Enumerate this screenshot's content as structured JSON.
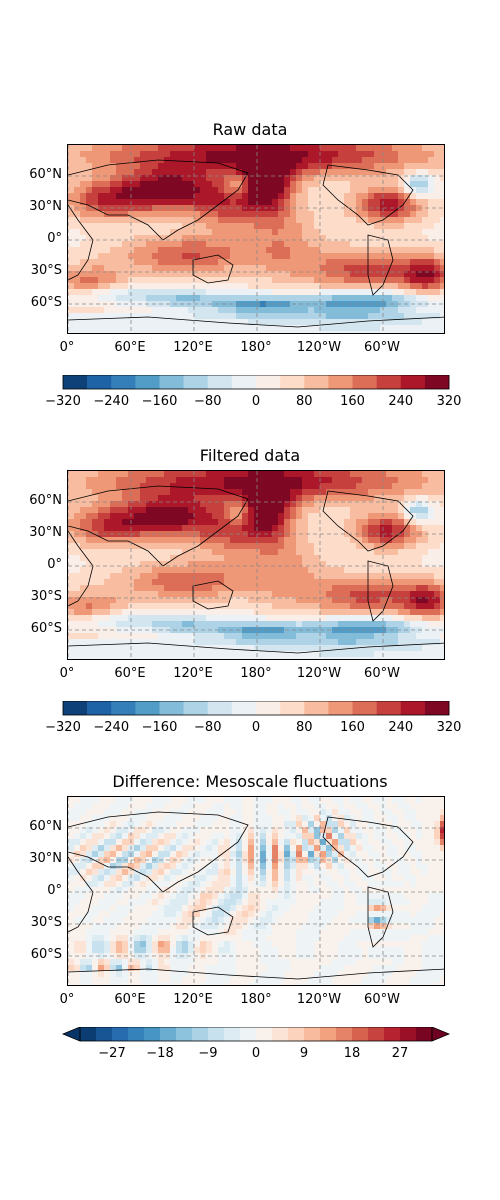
{
  "panels": [
    {
      "title": "Raw data",
      "lat_labels": [
        "60°N",
        "30°N",
        "0°",
        "30°S",
        "60°S"
      ],
      "lon_labels": [
        "0°",
        "60°E",
        "120°E",
        "180°",
        "120°W",
        "60°W"
      ],
      "colorbar": {
        "ticks": [
          "−320",
          "−240",
          "−160",
          "−80",
          "0",
          "80",
          "160",
          "240",
          "320"
        ],
        "range": [
          -320,
          320
        ],
        "levels": 16,
        "extend": "none"
      }
    },
    {
      "title": "Filtered data",
      "lat_labels": [
        "60°N",
        "30°N",
        "0°",
        "30°S",
        "60°S"
      ],
      "lon_labels": [
        "0°",
        "60°E",
        "120°E",
        "180°",
        "120°W",
        "60°W"
      ],
      "colorbar": {
        "ticks": [
          "−320",
          "−240",
          "−160",
          "−80",
          "0",
          "80",
          "160",
          "240",
          "320"
        ],
        "range": [
          -320,
          320
        ],
        "levels": 16,
        "extend": "none"
      }
    },
    {
      "title": "Difference: Mesoscale fluctuations",
      "lat_labels": [
        "60°N",
        "30°N",
        "0°",
        "30°S",
        "60°S"
      ],
      "lon_labels": [
        "0°",
        "60°E",
        "120°E",
        "180°",
        "120°W",
        "60°W"
      ],
      "colorbar": {
        "ticks": [
          "−27",
          "−18",
          "−9",
          "0",
          "9",
          "18",
          "27"
        ],
        "range": [
          -33,
          33
        ],
        "levels": 22,
        "extend": "both"
      }
    }
  ],
  "colormap": "RdBu_r",
  "gridlines": "dashed gray",
  "projection": "PlateCarree, central longitude 180°"
}
